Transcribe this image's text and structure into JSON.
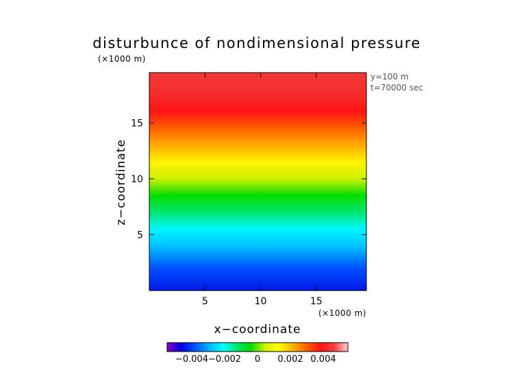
{
  "chart_data": {
    "type": "heatmap",
    "title": "disturbunce of nondimensional pressure",
    "xlabel": "x−coordinate",
    "ylabel": "z−coordinate",
    "x_unit": "(×1000 m)",
    "y_unit": "(×1000 m)",
    "xlim": [
      0,
      19.5
    ],
    "ylim": [
      0,
      19.5
    ],
    "x_ticks": [
      5,
      10,
      15
    ],
    "y_ticks": [
      5,
      10,
      15
    ],
    "annotations": [
      "y=100 m",
      "t=70000 sec"
    ],
    "colorbar": {
      "range": [
        -0.0055,
        0.0055
      ],
      "ticks": [
        -0.004,
        -0.002,
        0,
        0.002,
        0.004
      ],
      "tick_labels": [
        "−0.004",
        "−0.002",
        "0",
        "0.002",
        "0.004"
      ],
      "colors": [
        "#8a00c8",
        "#0000dc",
        "#0050ff",
        "#00b4ff",
        "#00ffff",
        "#00e678",
        "#00dc00",
        "#c8f000",
        "#ffff00",
        "#ffb400",
        "#ff6400",
        "#ff1414",
        "#f03c3c",
        "#ffcdd2"
      ]
    },
    "field_profile": {
      "z": [
        0,
        2,
        4,
        5.5,
        7,
        8.5,
        10,
        11.5,
        13,
        14.5,
        16,
        17.5,
        19.5
      ],
      "value": [
        -0.0044,
        -0.0038,
        -0.0028,
        -0.0022,
        -0.0012,
        -0.0004,
        0.0005,
        0.0014,
        0.0022,
        0.003,
        0.0038,
        0.0043,
        0.0046
      ]
    }
  }
}
